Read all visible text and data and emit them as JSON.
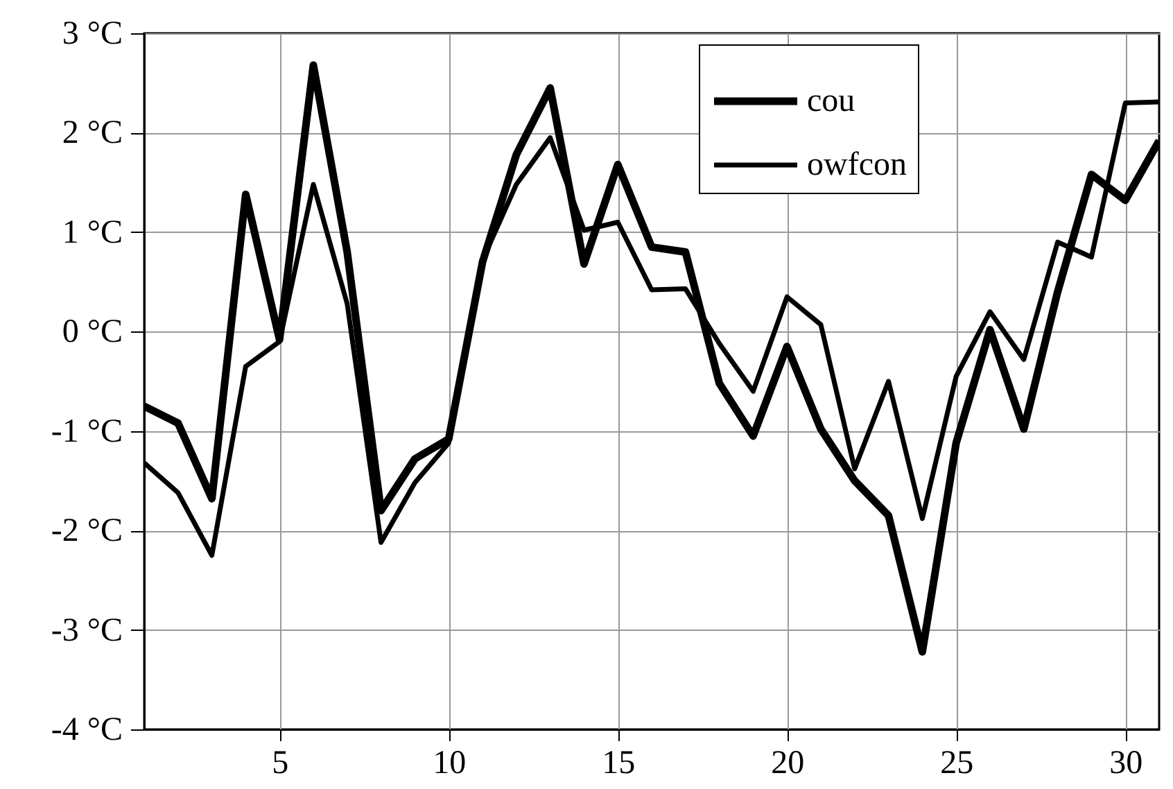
{
  "chart_data": {
    "type": "line",
    "x": [
      1,
      2,
      3,
      4,
      5,
      6,
      7,
      8,
      9,
      10,
      11,
      12,
      13,
      14,
      15,
      16,
      17,
      18,
      19,
      20,
      21,
      22,
      23,
      24,
      25,
      26,
      27,
      28,
      29,
      30,
      31
    ],
    "series": [
      {
        "name": "cou",
        "color": "#000000",
        "values": [
          -0.75,
          -0.92,
          -1.68,
          1.38,
          -0.08,
          2.68,
          0.8,
          -1.8,
          -1.28,
          -1.08,
          0.7,
          1.78,
          2.45,
          0.68,
          1.68,
          0.85,
          0.8,
          -0.52,
          -1.05,
          -0.15,
          -0.98,
          -1.5,
          -1.85,
          -3.22,
          -1.12,
          0.02,
          -0.98,
          0.4,
          1.58,
          1.32,
          1.92
        ]
      },
      {
        "name": "owfcon",
        "color": "#000000",
        "values": [
          -1.32,
          -1.62,
          -2.25,
          -0.35,
          -0.1,
          1.48,
          0.28,
          -2.12,
          -1.52,
          -1.12,
          0.72,
          1.48,
          1.95,
          1.02,
          1.1,
          0.42,
          0.43,
          -0.12,
          -0.6,
          0.35,
          0.07,
          -1.38,
          -0.5,
          -1.88,
          -0.45,
          0.2,
          -0.28,
          0.9,
          0.75,
          2.3,
          2.31
        ]
      }
    ],
    "xlim": [
      1,
      31
    ],
    "xticks": [
      5,
      10,
      15,
      20,
      25,
      30
    ],
    "ylim": [
      -4,
      3
    ],
    "yticks": [
      {
        "value": -4,
        "label": "-4 °C"
      },
      {
        "value": -3,
        "label": "-3 °C"
      },
      {
        "value": -2,
        "label": "-2 °C"
      },
      {
        "value": -1,
        "label": "-1 °C"
      },
      {
        "value": 0,
        "label": "0 °C"
      },
      {
        "value": 1,
        "label": "1 °C"
      },
      {
        "value": 2,
        "label": "2 °C"
      },
      {
        "value": 3,
        "label": "3 °C"
      }
    ],
    "grid": true,
    "legend": "top right",
    "line_style": "solid"
  }
}
